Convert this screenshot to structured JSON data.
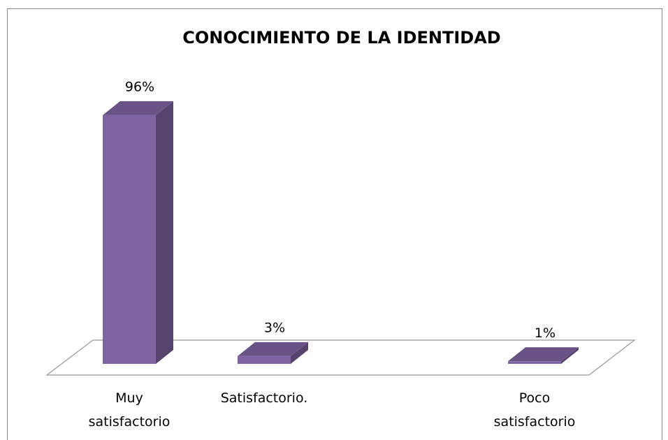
{
  "chart_data": {
    "type": "bar3d",
    "title": "CONOCIMIENTO DE LA IDENTIDAD",
    "categories": [
      "Muy satisfactorio",
      "Satisfactorio.",
      "Poco satisfactorio"
    ],
    "values": [
      96,
      3,
      1
    ],
    "value_labels": [
      "96%",
      "3%",
      "1%"
    ],
    "color": "#8064a2"
  }
}
